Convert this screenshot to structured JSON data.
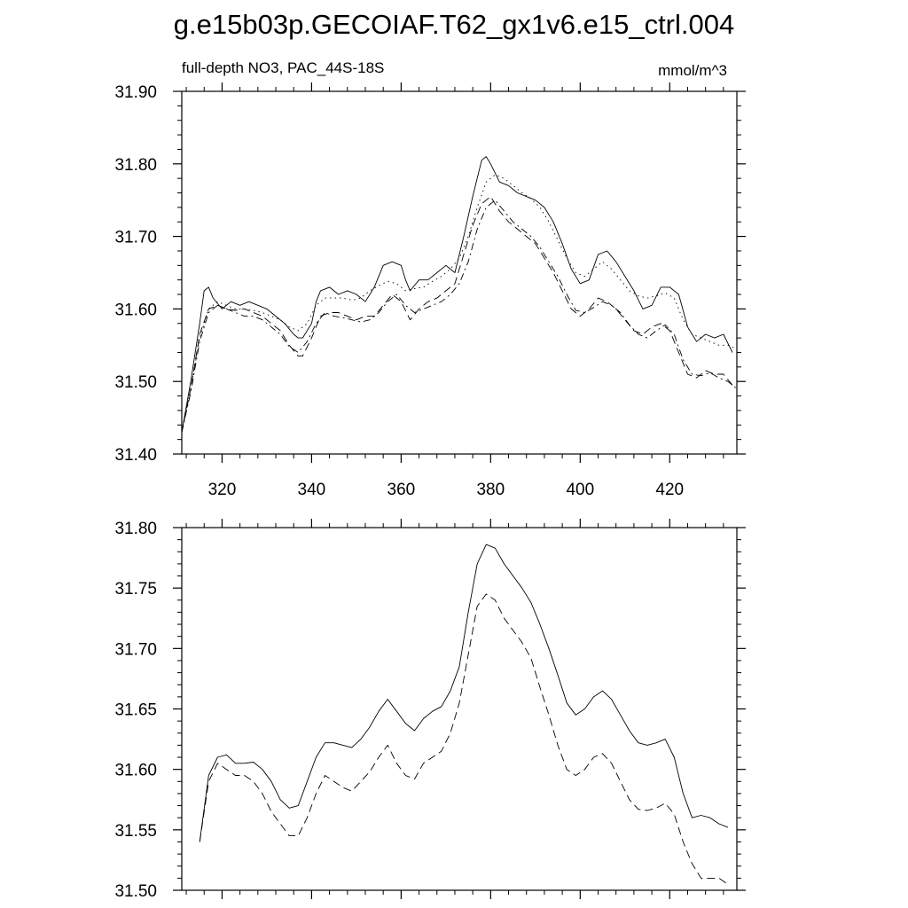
{
  "title": "g.e15b03p.GECOIAF.T62_gx1v6.e15_ctrl.004",
  "chart_data": [
    {
      "type": "line",
      "subtitle_left": "full-depth NO3, PAC_44S-18S",
      "subtitle_right": "mmol/m^3",
      "xlim": [
        311,
        435
      ],
      "ylim": [
        31.4,
        31.9
      ],
      "xticks": [
        320,
        340,
        360,
        380,
        400,
        420
      ],
      "xtick_labels": [
        "320",
        "340",
        "360",
        "380",
        "400",
        "420"
      ],
      "yticks": [
        31.4,
        31.5,
        31.6,
        31.7,
        31.8,
        31.9
      ],
      "ytick_labels": [
        "31.40",
        "31.50",
        "31.60",
        "31.70",
        "31.80",
        "31.90"
      ],
      "grid": false,
      "series": [
        {
          "style": "solid",
          "x": [
            311,
            313,
            315,
            316,
            317,
            318,
            320,
            322,
            324,
            326,
            328,
            330,
            332,
            334,
            336,
            337,
            338,
            340,
            341,
            342,
            344,
            346,
            348,
            350,
            352,
            354,
            356,
            358,
            360,
            361,
            362,
            364,
            366,
            368,
            370,
            372,
            374,
            376,
            378,
            379,
            380,
            382,
            384,
            386,
            388,
            390,
            392,
            394,
            396,
            398,
            400,
            402,
            404,
            406,
            408,
            410,
            412,
            414,
            416,
            418,
            420,
            422,
            424,
            426,
            428,
            430,
            432,
            434
          ],
          "y": [
            31.43,
            31.5,
            31.58,
            31.625,
            31.63,
            31.615,
            31.6,
            31.61,
            31.605,
            31.61,
            31.605,
            31.6,
            31.59,
            31.58,
            31.565,
            31.56,
            31.56,
            31.58,
            31.61,
            31.625,
            31.63,
            31.62,
            31.625,
            31.62,
            31.61,
            31.63,
            31.66,
            31.665,
            31.66,
            31.64,
            31.625,
            31.64,
            31.64,
            31.65,
            31.66,
            31.65,
            31.7,
            31.755,
            31.805,
            31.81,
            31.8,
            31.775,
            31.77,
            31.76,
            31.755,
            31.75,
            31.74,
            31.72,
            31.69,
            31.655,
            31.635,
            31.64,
            31.675,
            31.68,
            31.665,
            31.645,
            31.625,
            31.6,
            31.605,
            31.63,
            31.63,
            31.62,
            31.575,
            31.555,
            31.565,
            31.56,
            31.565,
            31.54
          ]
        },
        {
          "style": "dotted",
          "x": [
            311,
            313,
            315,
            317,
            319,
            321,
            323,
            325,
            327,
            329,
            331,
            333,
            335,
            337,
            339,
            341,
            343,
            345,
            347,
            349,
            351,
            353,
            355,
            357,
            359,
            361,
            363,
            365,
            367,
            369,
            371,
            373,
            375,
            377,
            379,
            381,
            383,
            385,
            387,
            389,
            391,
            393,
            395,
            397,
            399,
            401,
            403,
            405,
            407,
            409,
            411,
            413,
            415,
            417,
            419,
            421,
            423,
            425,
            427,
            429,
            431,
            433,
            435
          ],
          "y": [
            31.43,
            31.49,
            31.56,
            31.6,
            31.61,
            31.605,
            31.6,
            31.6,
            31.598,
            31.595,
            31.59,
            31.585,
            31.575,
            31.57,
            31.58,
            31.605,
            31.615,
            31.615,
            31.615,
            31.612,
            31.615,
            31.625,
            31.632,
            31.638,
            31.635,
            31.625,
            31.628,
            31.63,
            31.638,
            31.645,
            31.655,
            31.67,
            31.7,
            31.74,
            31.775,
            31.785,
            31.78,
            31.77,
            31.76,
            31.752,
            31.74,
            31.72,
            31.695,
            31.67,
            31.65,
            31.645,
            31.655,
            31.665,
            31.655,
            31.64,
            31.625,
            31.618,
            31.615,
            31.618,
            31.622,
            31.615,
            31.585,
            31.565,
            31.56,
            31.555,
            31.55,
            31.55,
            31.545
          ]
        },
        {
          "style": "dashed",
          "x": [
            311,
            313,
            315,
            317,
            319,
            321,
            323,
            325,
            327,
            329,
            331,
            333,
            335,
            337,
            338,
            340,
            342,
            344,
            346,
            348,
            350,
            352,
            354,
            356,
            358,
            360,
            362,
            364,
            366,
            368,
            370,
            372,
            374,
            376,
            378,
            380,
            382,
            384,
            386,
            388,
            390,
            392,
            394,
            396,
            398,
            400,
            402,
            404,
            406,
            408,
            410,
            412,
            414,
            416,
            418,
            420,
            422,
            424,
            426,
            428,
            430,
            432,
            434
          ],
          "y": [
            31.43,
            31.49,
            31.565,
            31.6,
            31.605,
            31.6,
            31.598,
            31.6,
            31.595,
            31.59,
            31.58,
            31.57,
            31.55,
            31.535,
            31.535,
            31.56,
            31.59,
            31.595,
            31.595,
            31.59,
            31.585,
            31.59,
            31.59,
            31.605,
            31.62,
            31.61,
            31.585,
            31.6,
            31.61,
            31.615,
            31.625,
            31.635,
            31.675,
            31.715,
            31.745,
            31.755,
            31.735,
            31.72,
            31.71,
            31.7,
            31.69,
            31.67,
            31.65,
            31.625,
            31.6,
            31.59,
            31.6,
            31.615,
            31.61,
            31.6,
            31.585,
            31.57,
            31.565,
            31.575,
            31.58,
            31.57,
            31.54,
            31.51,
            31.505,
            31.515,
            31.51,
            31.51,
            31.495
          ]
        },
        {
          "style": "dash-dot",
          "x": [
            311,
            313,
            315,
            317,
            319,
            321,
            323,
            325,
            327,
            329,
            331,
            333,
            335,
            337,
            339,
            341,
            343,
            345,
            347,
            349,
            351,
            353,
            355,
            357,
            359,
            361,
            363,
            365,
            367,
            369,
            371,
            373,
            375,
            377,
            379,
            381,
            383,
            385,
            387,
            389,
            391,
            393,
            395,
            397,
            399,
            401,
            403,
            405,
            407,
            409,
            411,
            413,
            415,
            417,
            419,
            421,
            423,
            425,
            427,
            429,
            431,
            433,
            435
          ],
          "y": [
            31.43,
            31.485,
            31.555,
            31.595,
            31.605,
            31.6,
            31.595,
            31.59,
            31.59,
            31.585,
            31.575,
            31.565,
            31.548,
            31.54,
            31.555,
            31.58,
            31.595,
            31.59,
            31.588,
            31.585,
            31.582,
            31.585,
            31.595,
            31.61,
            31.62,
            31.605,
            31.595,
            31.6,
            31.605,
            31.61,
            31.62,
            31.635,
            31.665,
            31.71,
            31.74,
            31.75,
            31.735,
            31.72,
            31.71,
            31.7,
            31.685,
            31.665,
            31.645,
            31.62,
            31.598,
            31.595,
            31.602,
            31.61,
            31.605,
            31.595,
            31.578,
            31.565,
            31.56,
            31.57,
            31.578,
            31.565,
            31.53,
            31.51,
            31.508,
            31.512,
            31.505,
            31.5,
            31.49
          ]
        }
      ]
    },
    {
      "type": "line",
      "xlim": [
        311,
        435
      ],
      "ylim": [
        31.5,
        31.8
      ],
      "xticks": [
        320,
        340,
        360,
        380,
        400,
        420
      ],
      "yticks": [
        31.5,
        31.55,
        31.6,
        31.65,
        31.7,
        31.75,
        31.8
      ],
      "ytick_labels": [
        "31.50",
        "31.55",
        "31.60",
        "31.65",
        "31.70",
        "31.75",
        "31.80"
      ],
      "grid": false,
      "series": [
        {
          "style": "solid",
          "x": [
            315,
            317,
            319,
            321,
            323,
            325,
            327,
            329,
            331,
            333,
            335,
            337,
            339,
            341,
            343,
            345,
            347,
            349,
            351,
            353,
            355,
            357,
            359,
            361,
            363,
            365,
            367,
            369,
            371,
            373,
            375,
            377,
            379,
            381,
            383,
            385,
            387,
            389,
            391,
            393,
            395,
            397,
            399,
            401,
            403,
            405,
            407,
            409,
            411,
            413,
            415,
            417,
            419,
            421,
            423,
            425,
            427,
            429,
            431,
            433
          ],
          "y": [
            31.54,
            31.595,
            31.61,
            31.612,
            31.605,
            31.605,
            31.606,
            31.6,
            31.59,
            31.575,
            31.568,
            31.57,
            31.59,
            31.61,
            31.622,
            31.622,
            31.62,
            31.618,
            31.625,
            31.635,
            31.648,
            31.658,
            31.648,
            31.638,
            31.632,
            31.642,
            31.648,
            31.652,
            31.665,
            31.685,
            31.73,
            31.77,
            31.786,
            31.783,
            31.77,
            31.76,
            31.75,
            31.738,
            31.72,
            31.7,
            31.678,
            31.655,
            31.645,
            31.65,
            31.66,
            31.665,
            31.658,
            31.645,
            31.632,
            31.622,
            31.62,
            31.622,
            31.625,
            31.61,
            31.58,
            31.56,
            31.562,
            31.56,
            31.555,
            31.552
          ]
        },
        {
          "style": "dashed",
          "x": [
            315,
            317,
            319,
            321,
            323,
            325,
            327,
            329,
            331,
            333,
            335,
            337,
            339,
            341,
            343,
            345,
            347,
            349,
            351,
            353,
            355,
            357,
            359,
            361,
            363,
            365,
            367,
            369,
            371,
            373,
            375,
            377,
            379,
            381,
            383,
            385,
            387,
            389,
            391,
            393,
            395,
            397,
            399,
            401,
            403,
            405,
            407,
            409,
            411,
            413,
            415,
            417,
            419,
            421,
            423,
            425,
            427,
            429,
            431,
            433
          ],
          "y": [
            31.54,
            31.59,
            31.605,
            31.6,
            31.595,
            31.595,
            31.59,
            31.58,
            31.565,
            31.555,
            31.545,
            31.545,
            31.56,
            31.58,
            31.595,
            31.59,
            31.585,
            31.582,
            31.59,
            31.598,
            31.61,
            31.62,
            31.605,
            31.595,
            31.592,
            31.605,
            31.61,
            31.615,
            31.63,
            31.655,
            31.695,
            31.735,
            31.745,
            31.74,
            31.725,
            31.715,
            31.705,
            31.692,
            31.668,
            31.645,
            31.62,
            31.6,
            31.595,
            31.6,
            31.61,
            31.613,
            31.605,
            31.59,
            31.575,
            31.567,
            31.566,
            31.568,
            31.572,
            31.563,
            31.54,
            31.522,
            31.51,
            31.51,
            31.51,
            31.505
          ]
        }
      ]
    }
  ]
}
